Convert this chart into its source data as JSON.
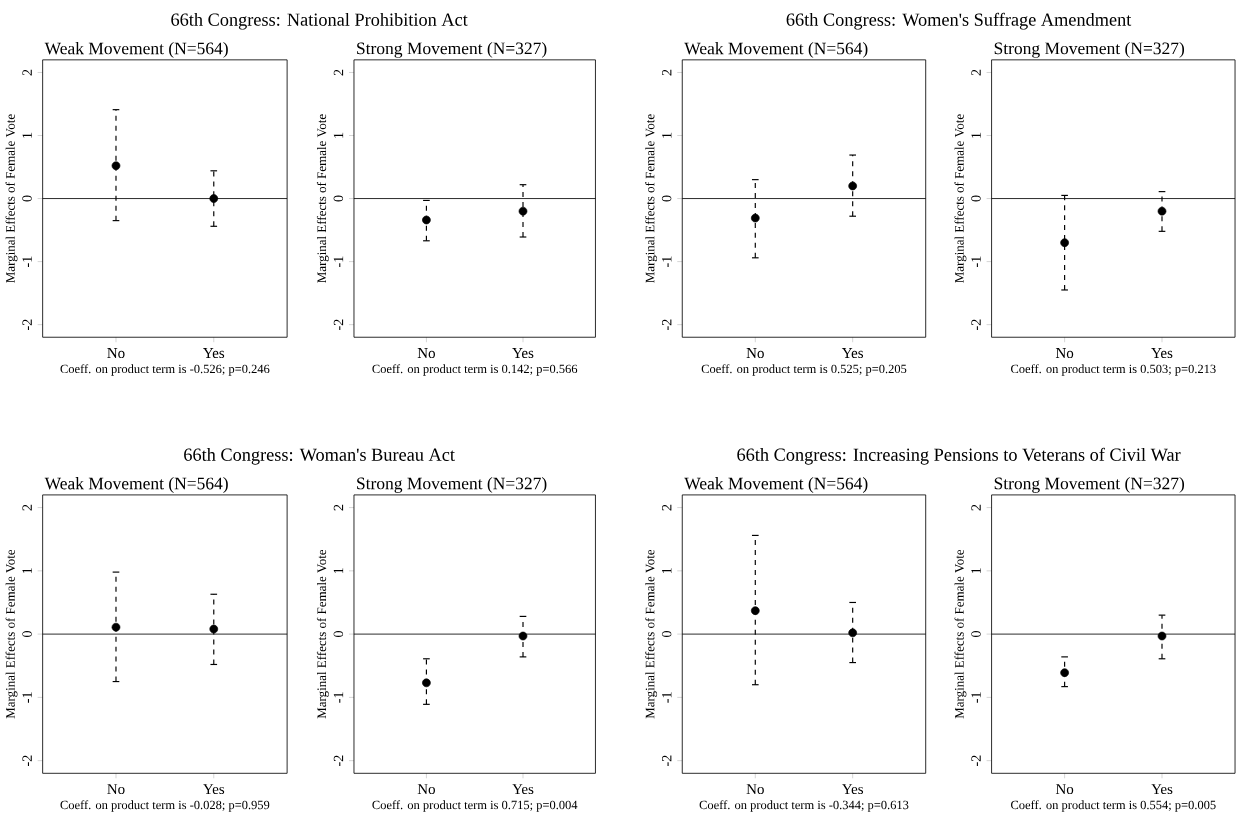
{
  "chart_data": [
    {
      "type": "scatter",
      "title": "66th Congress: National Prohibition Act",
      "subtitle": "Weak Movement (N=564)",
      "ylabel": "Marginal Effects of Female Vote",
      "categories": [
        "No",
        "Yes"
      ],
      "values": [
        0.52,
        0.0
      ],
      "errors": [
        [
          -0.35,
          1.41
        ],
        [
          -0.44,
          0.44
        ]
      ],
      "color": "#000000",
      "marker": "circle",
      "ylim": [
        -2.2,
        2.2
      ],
      "yticks": [
        -2,
        -1,
        0,
        1,
        2
      ],
      "ref_lines": [
        {
          "axis": "y",
          "value": 0
        }
      ],
      "annotations": [
        "Coeff. on product term is -0.526; p=0.246"
      ]
    },
    {
      "type": "scatter",
      "subtitle": "Strong Movement (N=327)",
      "ylabel": "Marginal Effects of Female Vote",
      "categories": [
        "No",
        "Yes"
      ],
      "values": [
        -0.34,
        -0.2
      ],
      "errors": [
        [
          -0.67,
          -0.03
        ],
        [
          -0.61,
          0.22
        ]
      ],
      "color": "#000000",
      "marker": "circle",
      "ylim": [
        -2.2,
        2.2
      ],
      "yticks": [
        -2,
        -1,
        0,
        1,
        2
      ],
      "ref_lines": [
        {
          "axis": "y",
          "value": 0
        }
      ],
      "annotations": [
        "Coeff. on product term is 0.142; p=0.566"
      ]
    },
    {
      "type": "scatter",
      "title": "66th Congress: Women's Suffrage Amendment",
      "subtitle": "Weak Movement (N=564)",
      "ylabel": "Marginal Effects of Female Vote",
      "categories": [
        "No",
        "Yes"
      ],
      "values": [
        -0.31,
        0.2
      ],
      "errors": [
        [
          -0.94,
          0.3
        ],
        [
          -0.28,
          0.69
        ]
      ],
      "color": "#000000",
      "marker": "circle",
      "ylim": [
        -2.2,
        2.2
      ],
      "yticks": [
        -2,
        -1,
        0,
        1,
        2
      ],
      "ref_lines": [
        {
          "axis": "y",
          "value": 0
        }
      ],
      "annotations": [
        "Coeff. on product term is 0.525; p=0.205"
      ]
    },
    {
      "type": "scatter",
      "subtitle": "Strong Movement (N=327)",
      "ylabel": "Marginal Effects of Female Vote",
      "categories": [
        "No",
        "Yes"
      ],
      "values": [
        -0.7,
        -0.2
      ],
      "errors": [
        [
          -1.45,
          0.05
        ],
        [
          -0.52,
          0.11
        ]
      ],
      "color": "#000000",
      "marker": "circle",
      "ylim": [
        -2.2,
        2.2
      ],
      "yticks": [
        -2,
        -1,
        0,
        1,
        2
      ],
      "ref_lines": [
        {
          "axis": "y",
          "value": 0
        }
      ],
      "annotations": [
        "Coeff. on product term is 0.503; p=0.213"
      ]
    },
    {
      "type": "scatter",
      "title": "66th Congress: Woman's Bureau Act",
      "subtitle": "Weak Movement (N=564)",
      "ylabel": "Marginal Effects of Female Vote",
      "categories": [
        "No",
        "Yes"
      ],
      "values": [
        0.11,
        0.08
      ],
      "errors": [
        [
          -0.75,
          0.98
        ],
        [
          -0.48,
          0.63
        ]
      ],
      "color": "#000000",
      "marker": "circle",
      "ylim": [
        -2.2,
        2.2
      ],
      "yticks": [
        -2,
        -1,
        0,
        1,
        2
      ],
      "ref_lines": [
        {
          "axis": "y",
          "value": 0
        }
      ],
      "annotations": [
        "Coeff. on product term is -0.028; p=0.959"
      ]
    },
    {
      "type": "scatter",
      "subtitle": "Strong Movement (N=327)",
      "ylabel": "Marginal Effects of Female Vote",
      "categories": [
        "No",
        "Yes"
      ],
      "values": [
        -0.77,
        -0.03
      ],
      "errors": [
        [
          -1.11,
          -0.39
        ],
        [
          -0.36,
          0.28
        ]
      ],
      "color": "#000000",
      "marker": "circle",
      "ylim": [
        -2.2,
        2.2
      ],
      "yticks": [
        -2,
        -1,
        0,
        1,
        2
      ],
      "ref_lines": [
        {
          "axis": "y",
          "value": 0
        }
      ],
      "annotations": [
        "Coeff. on product term is 0.715; p=0.004"
      ]
    },
    {
      "type": "scatter",
      "title": "66th Congress: Increasing Pensions to Veterans of Civil War",
      "subtitle": "Weak Movement (N=564)",
      "ylabel": "Marginal Effects of Female Vote",
      "categories": [
        "No",
        "Yes"
      ],
      "values": [
        0.37,
        0.02
      ],
      "errors": [
        [
          -0.8,
          1.56
        ],
        [
          -0.45,
          0.5
        ]
      ],
      "color": "#000000",
      "marker": "circle",
      "ylim": [
        -2.2,
        2.2
      ],
      "yticks": [
        -2,
        -1,
        0,
        1,
        2
      ],
      "ref_lines": [
        {
          "axis": "y",
          "value": 0
        }
      ],
      "annotations": [
        "Coeff. on product term is -0.344; p=0.613"
      ]
    },
    {
      "type": "scatter",
      "subtitle": "Strong Movement (N=327)",
      "ylabel": "Marginal Effects of Female Vote",
      "categories": [
        "No",
        "Yes"
      ],
      "values": [
        -0.61,
        -0.03
      ],
      "errors": [
        [
          -0.83,
          -0.36
        ],
        [
          -0.39,
          0.3
        ]
      ],
      "color": "#000000",
      "marker": "circle",
      "ylim": [
        -2.2,
        2.2
      ],
      "yticks": [
        -2,
        -1,
        0,
        1,
        2
      ],
      "ref_lines": [
        {
          "axis": "y",
          "value": 0
        }
      ],
      "annotations": [
        "Coeff. on product term is 0.554; p=0.005"
      ]
    }
  ]
}
